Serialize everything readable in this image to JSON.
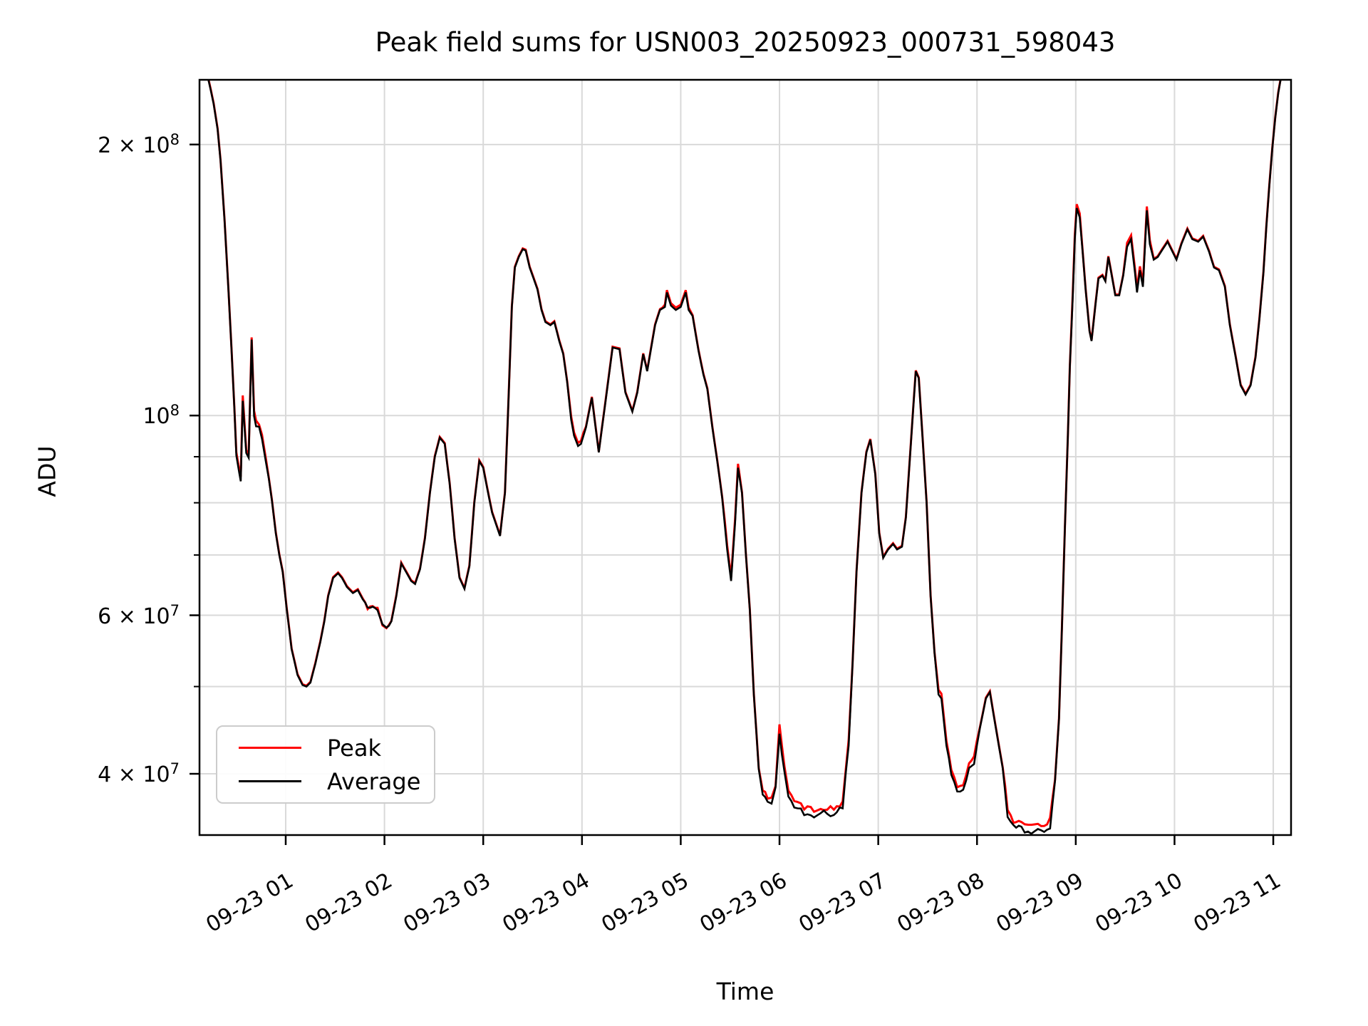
{
  "figure": {
    "title": "Peak field sums for USN003_20250923_000731_598043",
    "xlabel": "Time",
    "ylabel": "ADU",
    "background": "#ffffff",
    "grid_color": "#d9d9d9",
    "spine_color": "#000000"
  },
  "legend": {
    "entries": [
      {
        "label": "Peak",
        "color": "#ff0000"
      },
      {
        "label": "Average",
        "color": "#000000"
      }
    ]
  },
  "chart_data": {
    "type": "line",
    "title": "Peak field sums for USN003_20250923_000731_598043",
    "xlabel": "Time",
    "ylabel": "ADU",
    "yscale": "log",
    "grid": "both",
    "legend_position": "lower left",
    "ylim": [
      34200000,
      236000000
    ],
    "xlim_hours": [
      0.127,
      11.18
    ],
    "x_ticks": [
      {
        "hour": 1,
        "label": "09-23 01"
      },
      {
        "hour": 2,
        "label": "09-23 02"
      },
      {
        "hour": 3,
        "label": "09-23 03"
      },
      {
        "hour": 4,
        "label": "09-23 04"
      },
      {
        "hour": 5,
        "label": "09-23 05"
      },
      {
        "hour": 6,
        "label": "09-23 06"
      },
      {
        "hour": 7,
        "label": "09-23 07"
      },
      {
        "hour": 8,
        "label": "09-23 08"
      },
      {
        "hour": 9,
        "label": "09-23 09"
      },
      {
        "hour": 10,
        "label": "09-23 10"
      },
      {
        "hour": 11,
        "label": "09-23 11"
      }
    ],
    "y_ticks_labeled": [
      {
        "value": 200000000,
        "mantissa": "2 × 10",
        "exp": "8"
      },
      {
        "value": 100000000,
        "mantissa": "10",
        "exp": "8"
      },
      {
        "value": 60000000,
        "mantissa": "6 × 10",
        "exp": "7"
      },
      {
        "value": 40000000,
        "mantissa": "4 × 10",
        "exp": "7"
      }
    ],
    "y_ticks_minor": [
      50000000,
      70000000,
      80000000,
      90000000
    ],
    "value_unit": 10000000,
    "series": [
      {
        "name": "Average",
        "color": "#000000",
        "points_t_v": [
          [
            0.127,
            24.2
          ],
          [
            0.21,
            23.8
          ],
          [
            0.24,
            23.0
          ],
          [
            0.27,
            22.2
          ],
          [
            0.31,
            20.8
          ],
          [
            0.34,
            19.2
          ],
          [
            0.38,
            16.5
          ],
          [
            0.42,
            13.8
          ],
          [
            0.45,
            11.9
          ],
          [
            0.48,
            10.2
          ],
          [
            0.5,
            9.0
          ],
          [
            0.53,
            8.6
          ],
          [
            0.545,
            8.45
          ],
          [
            0.565,
            10.4
          ],
          [
            0.6,
            9.1
          ],
          [
            0.625,
            8.95
          ],
          [
            0.655,
            12.1
          ],
          [
            0.68,
            10.0
          ],
          [
            0.7,
            9.75
          ],
          [
            0.73,
            9.7
          ],
          [
            0.76,
            9.45
          ],
          [
            0.8,
            8.85
          ],
          [
            0.83,
            8.5
          ],
          [
            0.86,
            8.05
          ],
          [
            0.9,
            7.4
          ],
          [
            0.935,
            7.0
          ],
          [
            0.97,
            6.7
          ],
          [
            1.01,
            6.1
          ],
          [
            1.06,
            5.5
          ],
          [
            1.12,
            5.15
          ],
          [
            1.17,
            5.02
          ],
          [
            1.21,
            5.0
          ],
          [
            1.25,
            5.05
          ],
          [
            1.3,
            5.3
          ],
          [
            1.35,
            5.6
          ],
          [
            1.39,
            5.9
          ],
          [
            1.43,
            6.3
          ],
          [
            1.48,
            6.6
          ],
          [
            1.53,
            6.68
          ],
          [
            1.57,
            6.6
          ],
          [
            1.62,
            6.45
          ],
          [
            1.68,
            6.35
          ],
          [
            1.73,
            6.4
          ],
          [
            1.78,
            6.25
          ],
          [
            1.83,
            6.1
          ],
          [
            1.88,
            6.15
          ],
          [
            1.93,
            6.1
          ],
          [
            1.98,
            5.85
          ],
          [
            2.02,
            5.8
          ],
          [
            2.07,
            5.9
          ],
          [
            2.12,
            6.3
          ],
          [
            2.17,
            6.85
          ],
          [
            2.22,
            6.7
          ],
          [
            2.27,
            6.55
          ],
          [
            2.31,
            6.5
          ],
          [
            2.36,
            6.75
          ],
          [
            2.41,
            7.3
          ],
          [
            2.46,
            8.2
          ],
          [
            2.51,
            9.0
          ],
          [
            2.56,
            9.45
          ],
          [
            2.61,
            9.3
          ],
          [
            2.66,
            8.4
          ],
          [
            2.71,
            7.3
          ],
          [
            2.76,
            6.6
          ],
          [
            2.81,
            6.42
          ],
          [
            2.86,
            6.8
          ],
          [
            2.91,
            8.0
          ],
          [
            2.96,
            8.9
          ],
          [
            3.0,
            8.75
          ],
          [
            3.04,
            8.3
          ],
          [
            3.09,
            7.8
          ],
          [
            3.17,
            7.35
          ],
          [
            3.22,
            8.2
          ],
          [
            3.25,
            10.0
          ],
          [
            3.29,
            13.2
          ],
          [
            3.32,
            14.6
          ],
          [
            3.36,
            15.0
          ],
          [
            3.4,
            15.3
          ],
          [
            3.43,
            15.25
          ],
          [
            3.47,
            14.6
          ],
          [
            3.51,
            14.2
          ],
          [
            3.55,
            13.8
          ],
          [
            3.59,
            13.1
          ],
          [
            3.63,
            12.7
          ],
          [
            3.68,
            12.6
          ],
          [
            3.72,
            12.7
          ],
          [
            3.77,
            12.1
          ],
          [
            3.81,
            11.7
          ],
          [
            3.85,
            10.9
          ],
          [
            3.89,
            9.9
          ],
          [
            3.92,
            9.5
          ],
          [
            3.96,
            9.25
          ],
          [
            3.99,
            9.3
          ],
          [
            4.04,
            9.7
          ],
          [
            4.1,
            10.47
          ],
          [
            4.17,
            9.1
          ],
          [
            4.23,
            10.2
          ],
          [
            4.31,
            11.9
          ],
          [
            4.38,
            11.85
          ],
          [
            4.44,
            10.6
          ],
          [
            4.51,
            10.1
          ],
          [
            4.56,
            10.6
          ],
          [
            4.62,
            11.7
          ],
          [
            4.66,
            11.2
          ],
          [
            4.74,
            12.6
          ],
          [
            4.79,
            13.1
          ],
          [
            4.84,
            13.2
          ],
          [
            4.86,
            13.7
          ],
          [
            4.9,
            13.25
          ],
          [
            4.95,
            13.1
          ],
          [
            5.0,
            13.2
          ],
          [
            5.05,
            13.7
          ],
          [
            5.08,
            13.1
          ],
          [
            5.12,
            12.9
          ],
          [
            5.18,
            11.8
          ],
          [
            5.23,
            11.1
          ],
          [
            5.27,
            10.7
          ],
          [
            5.32,
            9.7
          ],
          [
            5.37,
            8.9
          ],
          [
            5.42,
            8.1
          ],
          [
            5.47,
            7.1
          ],
          [
            5.51,
            6.55
          ],
          [
            5.55,
            7.6
          ],
          [
            5.58,
            8.75
          ],
          [
            5.62,
            8.2
          ],
          [
            5.66,
            7.0
          ],
          [
            5.7,
            6.08
          ],
          [
            5.74,
            4.9
          ],
          [
            5.79,
            4.05
          ],
          [
            5.83,
            3.78
          ],
          [
            5.88,
            3.72
          ],
          [
            5.92,
            3.7
          ],
          [
            5.96,
            3.85
          ],
          [
            6.0,
            4.45
          ],
          [
            6.05,
            4.0
          ],
          [
            6.09,
            3.78
          ],
          [
            6.15,
            3.68
          ],
          [
            6.25,
            3.62
          ],
          [
            6.35,
            3.6
          ],
          [
            6.45,
            3.62
          ],
          [
            6.55,
            3.6
          ],
          [
            6.64,
            3.68
          ],
          [
            6.7,
            4.3
          ],
          [
            6.74,
            5.3
          ],
          [
            6.78,
            6.7
          ],
          [
            6.83,
            8.2
          ],
          [
            6.88,
            9.1
          ],
          [
            6.92,
            9.4
          ],
          [
            6.97,
            8.6
          ],
          [
            7.01,
            7.4
          ],
          [
            7.05,
            6.95
          ],
          [
            7.1,
            7.1
          ],
          [
            7.15,
            7.2
          ],
          [
            7.19,
            7.1
          ],
          [
            7.24,
            7.15
          ],
          [
            7.28,
            7.7
          ],
          [
            7.33,
            9.3
          ],
          [
            7.38,
            11.2
          ],
          [
            7.41,
            11.0
          ],
          [
            7.45,
            9.4
          ],
          [
            7.49,
            8.0
          ],
          [
            7.53,
            6.3
          ],
          [
            7.57,
            5.45
          ],
          [
            7.61,
            4.9
          ],
          [
            7.64,
            4.85
          ],
          [
            7.69,
            4.3
          ],
          [
            7.74,
            4.0
          ],
          [
            7.8,
            3.82
          ],
          [
            7.86,
            3.85
          ],
          [
            7.92,
            4.05
          ],
          [
            7.97,
            4.12
          ],
          [
            8.03,
            4.5
          ],
          [
            8.09,
            4.85
          ],
          [
            8.13,
            4.93
          ],
          [
            8.19,
            4.5
          ],
          [
            8.26,
            4.06
          ],
          [
            8.31,
            3.6
          ],
          [
            8.37,
            3.5
          ],
          [
            8.45,
            3.47
          ],
          [
            8.55,
            3.45
          ],
          [
            8.65,
            3.45
          ],
          [
            8.74,
            3.5
          ],
          [
            8.79,
            3.9
          ],
          [
            8.83,
            4.6
          ],
          [
            8.86,
            5.8
          ],
          [
            8.89,
            7.5
          ],
          [
            8.92,
            9.5
          ],
          [
            8.94,
            11.3
          ],
          [
            8.97,
            13.6
          ],
          [
            8.99,
            15.7
          ],
          [
            9.01,
            17.0
          ],
          [
            9.04,
            16.6
          ],
          [
            9.07,
            15.2
          ],
          [
            9.1,
            13.8
          ],
          [
            9.14,
            12.4
          ],
          [
            9.16,
            12.1
          ],
          [
            9.2,
            13.3
          ],
          [
            9.23,
            14.2
          ],
          [
            9.27,
            14.3
          ],
          [
            9.3,
            14.1
          ],
          [
            9.33,
            15.0
          ],
          [
            9.36,
            14.4
          ],
          [
            9.4,
            13.6
          ],
          [
            9.44,
            13.6
          ],
          [
            9.48,
            14.3
          ],
          [
            9.52,
            15.4
          ],
          [
            9.56,
            15.7
          ],
          [
            9.6,
            14.4
          ],
          [
            9.62,
            13.7
          ],
          [
            9.65,
            14.5
          ],
          [
            9.68,
            13.9
          ],
          [
            9.72,
            16.9
          ],
          [
            9.75,
            15.5
          ],
          [
            9.79,
            14.9
          ],
          [
            9.83,
            15.0
          ],
          [
            9.88,
            15.3
          ],
          [
            9.93,
            15.6
          ],
          [
            9.98,
            15.2
          ],
          [
            10.02,
            14.9
          ],
          [
            10.07,
            15.5
          ],
          [
            10.13,
            16.1
          ],
          [
            10.18,
            15.7
          ],
          [
            10.24,
            15.6
          ],
          [
            10.29,
            15.8
          ],
          [
            10.35,
            15.2
          ],
          [
            10.4,
            14.6
          ],
          [
            10.45,
            14.5
          ],
          [
            10.51,
            13.9
          ],
          [
            10.56,
            12.6
          ],
          [
            10.62,
            11.6
          ],
          [
            10.67,
            10.8
          ],
          [
            10.72,
            10.55
          ],
          [
            10.77,
            10.8
          ],
          [
            10.82,
            11.6
          ],
          [
            10.86,
            12.8
          ],
          [
            10.9,
            14.4
          ],
          [
            10.93,
            16.2
          ],
          [
            10.96,
            18.0
          ],
          [
            10.99,
            19.8
          ],
          [
            11.02,
            21.4
          ],
          [
            11.05,
            22.8
          ],
          [
            11.08,
            23.8
          ],
          [
            11.12,
            24.2
          ],
          [
            11.18,
            24.4
          ]
        ],
        "noise_regions_t0_t1_frac": [
          [
            0.5,
            0.8,
            0.004
          ],
          [
            1.8,
            2.1,
            0.004
          ],
          [
            5.82,
            6.68,
            0.007
          ],
          [
            7.7,
            7.98,
            0.005
          ],
          [
            8.3,
            8.8,
            0.007
          ]
        ]
      },
      {
        "name": "Peak",
        "color": "#ff0000",
        "derived_from": "Average",
        "default_extra_fraction": 0.002,
        "extra_fraction_regions_t0_t1_frac": [
          [
            0.5,
            0.8,
            0.01
          ],
          [
            3.88,
            4.02,
            0.008
          ],
          [
            4.83,
            5.1,
            0.006
          ],
          [
            5.44,
            5.6,
            0.01
          ],
          [
            5.8,
            6.7,
            0.014
          ],
          [
            7.58,
            8.0,
            0.012
          ],
          [
            8.28,
            8.8,
            0.015
          ],
          [
            8.95,
            9.05,
            0.01
          ],
          [
            9.5,
            9.77,
            0.01
          ]
        ]
      }
    ]
  },
  "layout_note": "log y-axis, gridlines at major+minor ticks, x tick labels rotated 30 degrees"
}
